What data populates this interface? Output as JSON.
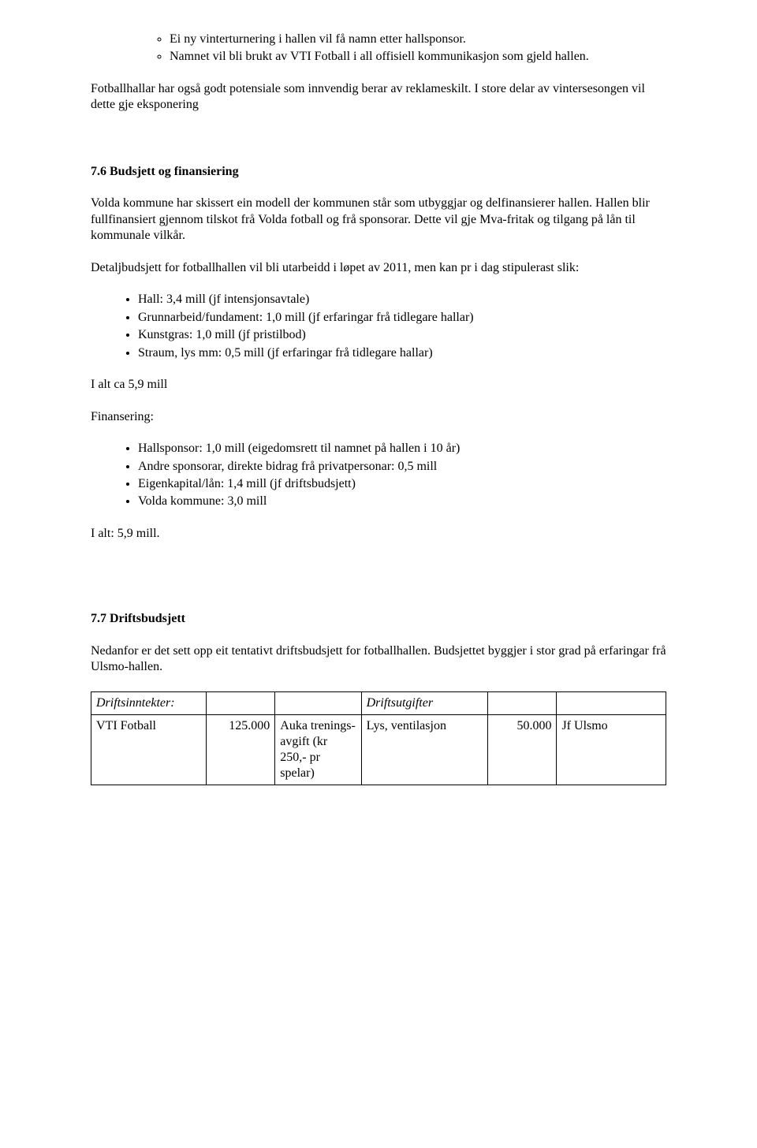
{
  "sub_bullets": [
    "Ei ny vinterturnering i hallen vil få namn etter hallsponsor.",
    "Namnet vil bli brukt av VTI Fotball i all offisiell kommunikasjon som gjeld hallen."
  ],
  "para1": "Fotballhallar har også godt potensiale som innvendig berar av reklameskilt. I store delar av vintersesongen vil dette gje eksponering",
  "heading76": "7.6 Budsjett og finansiering",
  "para76a": "Volda kommune har skissert ein modell der kommunen står som utbyggjar og delfinansierer hallen. Hallen blir fullfinansiert gjennom tilskot frå Volda fotball og frå sponsorar. Dette vil gje Mva-fritak og tilgang på lån til kommunale vilkår.",
  "para76b": "Detaljbudsjett for fotballhallen vil bli utarbeidd i løpet av 2011, men kan pr i dag stipulerast slik:",
  "budget_items": [
    "Hall: 3,4 mill (jf intensjonsavtale)",
    "Grunnarbeid/fundament: 1,0 mill (jf erfaringar frå tidlegare hallar)",
    "Kunstgras: 1,0 mill (jf pristilbod)",
    "Straum, lys mm: 0,5 mill (jf erfaringar frå tidlegare hallar)"
  ],
  "total1": "I alt ca 5,9 mill",
  "fin_label": "Finansering:",
  "fin_items": [
    "Hallsponsor: 1,0 mill (eigedomsrett til namnet på hallen i 10 år)",
    "Andre sponsorar, direkte bidrag frå privatpersonar: 0,5 mill",
    "Eigenkapital/lån: 1,4 mill (jf driftsbudsjett)",
    "Volda kommune: 3,0 mill"
  ],
  "total2": "I alt: 5,9 mill.",
  "heading77": "7.7 Driftsbudsjett",
  "para77": "Nedanfor er det sett opp eit tentativt driftsbudsjett for fotballhallen. Budsjettet byggjer i stor grad på erfaringar frå Ulsmo-hallen.",
  "table": {
    "header": {
      "left": "Driftsinntekter:",
      "right": "Driftsutgifter"
    },
    "row1": {
      "c1": "VTI Fotball",
      "c2": "125.000",
      "c3": "Auka trenings-avgift (kr 250,- pr spelar)",
      "c4": "Lys, ventilasjon",
      "c5": "50.000",
      "c6": "Jf Ulsmo"
    }
  }
}
